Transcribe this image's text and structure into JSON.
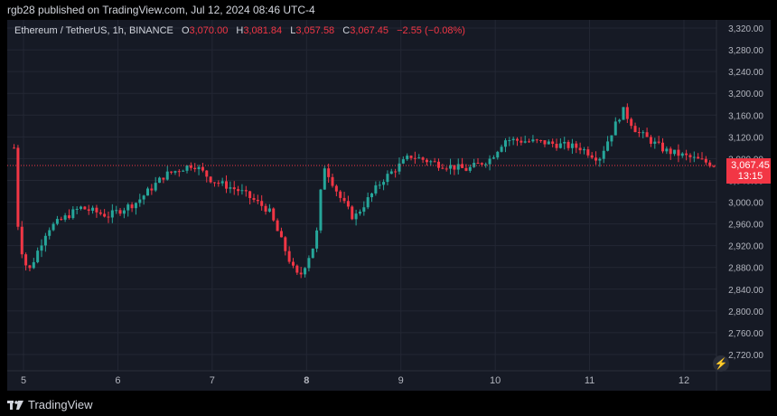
{
  "header": {
    "published_text": "rgb28 published on TradingView.com, Jul 12, 2024 08:46 UTC-4"
  },
  "legend": {
    "symbol": "Ethereum / TetherUS, 1h, BINANCE",
    "open_key": "O",
    "open": "3,070.00",
    "high_key": "H",
    "high": "3,081.84",
    "low_key": "L",
    "low": "3,057.58",
    "close_key": "C",
    "close": "3,067.45",
    "change": "−2.55 (−0.08%)"
  },
  "price_tag": {
    "price": "3,067.45",
    "countdown": "13:15"
  },
  "footer": {
    "brand": "TradingView"
  },
  "colors": {
    "up": "#26a69a",
    "down": "#f23645",
    "background": "#161a25",
    "grid": "#232734",
    "axis_text": "#b2b5be"
  },
  "icons": [
    "tradingview-logo-icon",
    "lightning-bolt-icon"
  ],
  "chart_data": {
    "type": "candlestick",
    "ylim": [
      2690,
      3335
    ],
    "y_ticks": [
      "2,720.00",
      "2,760.00",
      "2,800.00",
      "2,840.00",
      "2,880.00",
      "2,920.00",
      "2,960.00",
      "3,000.00",
      "3,040.00",
      "3,080.00",
      "3,120.00",
      "3,160.00",
      "3,200.00",
      "3,240.00",
      "3,280.00",
      "3,320.00"
    ],
    "y_tick_values": [
      2720,
      2760,
      2800,
      2840,
      2880,
      2920,
      2960,
      3000,
      3040,
      3080,
      3120,
      3160,
      3200,
      3240,
      3280,
      3320
    ],
    "x_ticks": [
      "5",
      "6",
      "7",
      "8",
      "9",
      "10",
      "11",
      "12"
    ],
    "last_price": 3067.45,
    "day_anchors": [
      {
        "day": 4.9,
        "price": 3100
      },
      {
        "day": 4.95,
        "price": 2930
      },
      {
        "day": 5.05,
        "price": 2870
      },
      {
        "day": 5.25,
        "price": 2950
      },
      {
        "day": 5.6,
        "price": 2990
      },
      {
        "day": 5.9,
        "price": 2975
      },
      {
        "day": 6.2,
        "price": 3000
      },
      {
        "day": 6.5,
        "price": 3050
      },
      {
        "day": 6.8,
        "price": 3070
      },
      {
        "day": 7.0,
        "price": 3040
      },
      {
        "day": 7.3,
        "price": 3020
      },
      {
        "day": 7.6,
        "price": 2985
      },
      {
        "day": 7.85,
        "price": 2880
      },
      {
        "day": 7.92,
        "price": 2860
      },
      {
        "day": 8.1,
        "price": 2930
      },
      {
        "day": 8.18,
        "price": 3070
      },
      {
        "day": 8.35,
        "price": 3010
      },
      {
        "day": 8.5,
        "price": 2970
      },
      {
        "day": 8.8,
        "price": 3040
      },
      {
        "day": 9.1,
        "price": 3085
      },
      {
        "day": 9.4,
        "price": 3070
      },
      {
        "day": 9.7,
        "price": 3060
      },
      {
        "day": 9.95,
        "price": 3080
      },
      {
        "day": 10.1,
        "price": 3115
      },
      {
        "day": 10.5,
        "price": 3110
      },
      {
        "day": 10.9,
        "price": 3100
      },
      {
        "day": 11.1,
        "price": 3080
      },
      {
        "day": 11.35,
        "price": 3170
      },
      {
        "day": 11.5,
        "price": 3130
      },
      {
        "day": 11.8,
        "price": 3095
      },
      {
        "day": 12.1,
        "price": 3080
      },
      {
        "day": 12.35,
        "price": 3067.45
      }
    ]
  }
}
